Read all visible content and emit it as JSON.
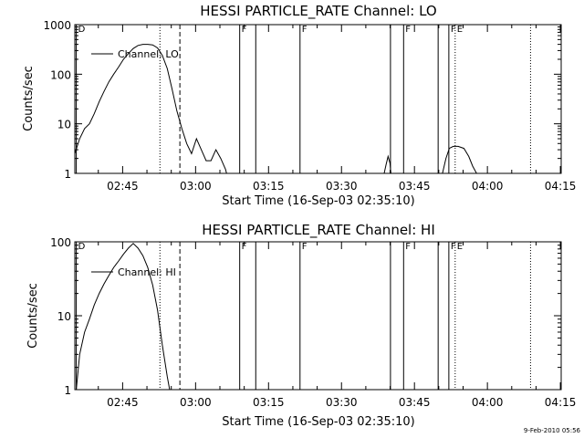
{
  "footer_date": "9-Feb-2010 05:56",
  "chart_data": [
    {
      "type": "line",
      "title": "HESSI PARTICLE_RATE Channel: LO",
      "xlabel": "Start Time (16-Sep-03 02:35:10)",
      "ylabel": "Counts/sec",
      "x_unit": "minutes after 02:35:10",
      "xlim": [
        0,
        100
      ],
      "ylim": [
        1,
        1000
      ],
      "y_scale": "log",
      "x_ticks": [
        {
          "t": 9.83,
          "label": "02:45"
        },
        {
          "t": 24.83,
          "label": "03:00"
        },
        {
          "t": 39.83,
          "label": "03:15"
        },
        {
          "t": 54.83,
          "label": "03:30"
        },
        {
          "t": 69.83,
          "label": "03:45"
        },
        {
          "t": 84.83,
          "label": "04:00"
        },
        {
          "t": 99.83,
          "label": "04:15"
        }
      ],
      "y_ticks": [
        {
          "v": 1,
          "label": "1"
        },
        {
          "v": 10,
          "label": "10"
        },
        {
          "v": 100,
          "label": "100"
        },
        {
          "v": 1000,
          "label": "1000"
        }
      ],
      "legend": {
        "label": "Channel: LO",
        "placement": "top-left"
      },
      "markers": [
        {
          "t": 0.3,
          "style": "solid",
          "label": "D"
        },
        {
          "t": 17.5,
          "style": "dotted",
          "label": ""
        },
        {
          "t": 21.6,
          "style": "dashed",
          "label": ""
        },
        {
          "t": 33.9,
          "style": "solid",
          "label": "F"
        },
        {
          "t": 37.2,
          "style": "solid",
          "label": ""
        },
        {
          "t": 46.3,
          "style": "solid",
          "label": "F"
        },
        {
          "t": 64.9,
          "style": "solid",
          "label": ""
        },
        {
          "t": 67.6,
          "style": "solid",
          "label": "F"
        },
        {
          "t": 74.7,
          "style": "solid",
          "label": ""
        },
        {
          "t": 76.9,
          "style": "solid",
          "label": "F"
        },
        {
          "t": 78.2,
          "style": "dotted",
          "label": "E"
        },
        {
          "t": 93.7,
          "style": "dotted",
          "label": ""
        }
      ],
      "series": [
        {
          "name": "Channel: LO",
          "x": [
            0,
            1,
            2,
            3,
            4,
            5,
            6,
            7,
            8,
            9,
            10,
            11,
            12,
            13,
            14,
            15,
            16,
            17,
            18,
            19,
            20,
            21,
            22,
            23,
            24,
            25,
            26,
            27,
            28,
            29,
            30,
            31,
            31.2
          ],
          "y": [
            2.5,
            5,
            8,
            10,
            16,
            28,
            45,
            70,
            100,
            140,
            200,
            260,
            330,
            380,
            400,
            400,
            390,
            340,
            240,
            130,
            50,
            18,
            8,
            4,
            2.5,
            5,
            3,
            1.8,
            1.8,
            3,
            2,
            1.2,
            1
          ]
        },
        {
          "name": "Channel: LO",
          "x": [
            63.6,
            64.0,
            64.4,
            64.8,
            65.0
          ],
          "y": [
            1,
            1.5,
            2.2,
            1.6,
            1
          ]
        },
        {
          "name": "Channel: LO",
          "x": [
            75.6,
            76.3,
            77.0,
            77.8,
            78.8,
            80.0,
            81.0,
            81.8,
            82.6
          ],
          "y": [
            1,
            2,
            3.2,
            3.5,
            3.5,
            3.2,
            2.2,
            1.4,
            1
          ]
        }
      ]
    },
    {
      "type": "line",
      "title": "HESSI PARTICLE_RATE Channel: HI",
      "xlabel": "Start Time (16-Sep-03 02:35:10)",
      "ylabel": "Counts/sec",
      "x_unit": "minutes after 02:35:10",
      "xlim": [
        0,
        100
      ],
      "ylim": [
        1,
        100
      ],
      "y_scale": "log",
      "x_ticks": [
        {
          "t": 9.83,
          "label": "02:45"
        },
        {
          "t": 24.83,
          "label": "03:00"
        },
        {
          "t": 39.83,
          "label": "03:15"
        },
        {
          "t": 54.83,
          "label": "03:30"
        },
        {
          "t": 69.83,
          "label": "03:45"
        },
        {
          "t": 84.83,
          "label": "04:00"
        },
        {
          "t": 99.83,
          "label": "04:15"
        }
      ],
      "y_ticks": [
        {
          "v": 1,
          "label": "1"
        },
        {
          "v": 10,
          "label": "10"
        },
        {
          "v": 100,
          "label": "100"
        }
      ],
      "legend": {
        "label": "Channel: HI",
        "placement": "top-left"
      },
      "markers": [
        {
          "t": 0.3,
          "style": "solid",
          "label": "D"
        },
        {
          "t": 17.5,
          "style": "dotted",
          "label": ""
        },
        {
          "t": 21.6,
          "style": "dashed",
          "label": ""
        },
        {
          "t": 33.9,
          "style": "solid",
          "label": "F"
        },
        {
          "t": 37.2,
          "style": "solid",
          "label": ""
        },
        {
          "t": 46.3,
          "style": "solid",
          "label": "F"
        },
        {
          "t": 64.9,
          "style": "solid",
          "label": ""
        },
        {
          "t": 67.6,
          "style": "solid",
          "label": "F"
        },
        {
          "t": 74.7,
          "style": "solid",
          "label": ""
        },
        {
          "t": 76.9,
          "style": "solid",
          "label": "F"
        },
        {
          "t": 78.2,
          "style": "dotted",
          "label": "E"
        },
        {
          "t": 93.7,
          "style": "dotted",
          "label": ""
        }
      ],
      "series": [
        {
          "name": "Channel: HI",
          "x": [
            0.3,
            1,
            2,
            3,
            4,
            5,
            6,
            7,
            8,
            9,
            10,
            11,
            12,
            13,
            14,
            15,
            16,
            17,
            18,
            19,
            19.5
          ],
          "y": [
            1,
            3,
            6,
            9,
            14,
            20,
            27,
            35,
            45,
            55,
            68,
            82,
            95,
            82,
            65,
            45,
            26,
            12,
            4,
            1.5,
            1
          ]
        }
      ]
    }
  ]
}
